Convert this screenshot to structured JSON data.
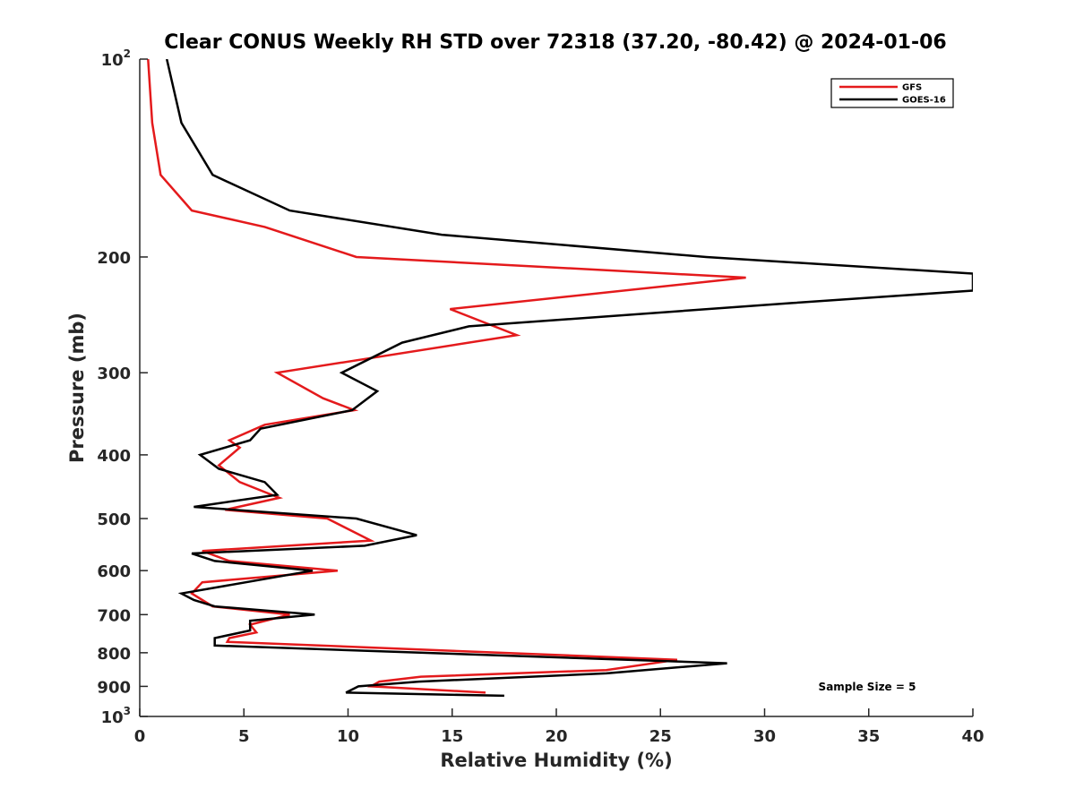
{
  "chart_data": {
    "type": "line",
    "title": "Clear CONUS Weekly RH STD over 72318 (37.20, -80.42) @ 2024-01-06",
    "xlabel": "Relative Humidity (%)",
    "ylabel": "Pressure (mb)",
    "xlim": [
      0,
      40
    ],
    "ylim": [
      100,
      1000
    ],
    "y_scale": "log",
    "y_reversed": true,
    "x_ticks": [
      0,
      5,
      10,
      15,
      20,
      25,
      30,
      35,
      40
    ],
    "x_tick_labels": [
      "0",
      "5",
      "10",
      "15",
      "20",
      "25",
      "30",
      "35",
      "40"
    ],
    "y_ticks": [
      100,
      200,
      300,
      400,
      500,
      600,
      700,
      800,
      900,
      1000
    ],
    "y_tick_labels": [
      {
        "base": "10",
        "exp": "2"
      },
      {
        "base": "200",
        "exp": ""
      },
      {
        "base": "300",
        "exp": ""
      },
      {
        "base": "400",
        "exp": ""
      },
      {
        "base": "500",
        "exp": ""
      },
      {
        "base": "600",
        "exp": ""
      },
      {
        "base": "700",
        "exp": ""
      },
      {
        "base": "800",
        "exp": ""
      },
      {
        "base": "900",
        "exp": ""
      },
      {
        "base": "10",
        "exp": "3"
      }
    ],
    "grid": false,
    "legend_position": "top-right",
    "annotation": "Sample Size = 5",
    "series": [
      {
        "name": "GFS",
        "color": "#e41a1c",
        "points": [
          [
            0.4,
            100
          ],
          [
            0.6,
            125
          ],
          [
            1.0,
            150
          ],
          [
            2.5,
            170
          ],
          [
            6.0,
            180
          ],
          [
            10.4,
            200
          ],
          [
            29.1,
            215
          ],
          [
            14.9,
            240
          ],
          [
            18.1,
            263
          ],
          [
            6.6,
            300
          ],
          [
            8.8,
            328
          ],
          [
            10.3,
            342
          ],
          [
            6.0,
            360
          ],
          [
            4.3,
            380
          ],
          [
            4.8,
            390
          ],
          [
            3.8,
            415
          ],
          [
            4.8,
            440
          ],
          [
            6.7,
            465
          ],
          [
            4.1,
            485
          ],
          [
            9.0,
            500
          ],
          [
            11.1,
            540
          ],
          [
            3.0,
            560
          ],
          [
            4.3,
            580
          ],
          [
            9.5,
            600
          ],
          [
            3.0,
            625
          ],
          [
            2.5,
            650
          ],
          [
            3.5,
            680
          ],
          [
            7.2,
            700
          ],
          [
            5.3,
            725
          ],
          [
            5.6,
            745
          ],
          [
            4.3,
            760
          ],
          [
            4.2,
            770
          ],
          [
            25.8,
            820
          ],
          [
            22.4,
            850
          ],
          [
            13.5,
            870
          ],
          [
            11.5,
            885
          ],
          [
            11.1,
            900
          ],
          [
            16.6,
            920
          ]
        ]
      },
      {
        "name": "GOES-16",
        "color": "#000000",
        "points": [
          [
            1.3,
            100
          ],
          [
            2.0,
            125
          ],
          [
            3.5,
            150
          ],
          [
            7.2,
            170
          ],
          [
            14.5,
            185
          ],
          [
            27.2,
            200
          ],
          [
            40.0,
            212
          ],
          [
            40.0,
            225
          ],
          [
            31.3,
            235
          ],
          [
            15.8,
            255
          ],
          [
            12.6,
            270
          ],
          [
            9.7,
            300
          ],
          [
            11.4,
            320
          ],
          [
            10.2,
            342
          ],
          [
            5.8,
            365
          ],
          [
            5.3,
            380
          ],
          [
            2.9,
            400
          ],
          [
            3.8,
            420
          ],
          [
            6.0,
            440
          ],
          [
            6.6,
            460
          ],
          [
            2.6,
            480
          ],
          [
            10.4,
            500
          ],
          [
            13.3,
            530
          ],
          [
            10.8,
            550
          ],
          [
            2.5,
            565
          ],
          [
            3.6,
            580
          ],
          [
            8.3,
            600
          ],
          [
            2.0,
            650
          ],
          [
            2.6,
            665
          ],
          [
            3.6,
            680
          ],
          [
            8.4,
            700
          ],
          [
            5.3,
            715
          ],
          [
            5.3,
            740
          ],
          [
            3.6,
            760
          ],
          [
            3.6,
            780
          ],
          [
            28.2,
            830
          ],
          [
            22.4,
            860
          ],
          [
            13.4,
            885
          ],
          [
            10.5,
            900
          ],
          [
            9.9,
            920
          ],
          [
            17.5,
            930
          ]
        ]
      }
    ]
  }
}
